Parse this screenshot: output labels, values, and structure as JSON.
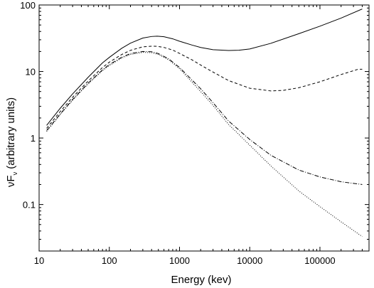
{
  "chart_data": {
    "type": "line",
    "xlabel": "Energy (kev)",
    "ylabel": {
      "prefix": "νF",
      "subscript": "ν",
      "suffix": " (arbitrary units)"
    },
    "xscale": "log",
    "yscale": "log",
    "xlim": [
      10,
      500000
    ],
    "ylim": [
      0.02,
      100
    ],
    "grid": false,
    "x_ticks": [
      {
        "value": 10,
        "label": "10"
      },
      {
        "value": 100,
        "label": "100"
      },
      {
        "value": 1000,
        "label": "1000"
      },
      {
        "value": 10000,
        "label": "10000"
      },
      {
        "value": 100000,
        "label": "100000"
      }
    ],
    "y_ticks": [
      {
        "value": 0.1,
        "label": "0.1"
      },
      {
        "value": 1,
        "label": "1"
      },
      {
        "value": 10,
        "label": "10"
      },
      {
        "value": 100,
        "label": "100"
      }
    ],
    "series": [
      {
        "style": "solid",
        "x": [
          12.8,
          20,
          30,
          50,
          80,
          100,
          150,
          200,
          300,
          400,
          480,
          600,
          800,
          1000,
          1500,
          2000,
          3000,
          5000,
          7000,
          10000,
          20000,
          50000,
          100000,
          200000,
          400000
        ],
        "y": [
          1.55,
          2.8,
          4.6,
          8.2,
          13.5,
          16.3,
          22.3,
          26.7,
          31.8,
          33.6,
          34.0,
          33.3,
          31.0,
          28.5,
          25.0,
          23.0,
          21.3,
          20.7,
          20.9,
          21.8,
          26.5,
          37.0,
          48.0,
          63.5,
          87.0
        ]
      },
      {
        "style": "dashed",
        "x": [
          12.8,
          20,
          30,
          50,
          80,
          100,
          150,
          200,
          300,
          400,
          480,
          600,
          800,
          1000,
          1500,
          2000,
          3000,
          5000,
          10000,
          20000,
          30000,
          50000,
          100000,
          200000,
          350000,
          400000
        ],
        "y": [
          1.4,
          2.5,
          4.1,
          7.2,
          11.5,
          13.8,
          18.0,
          20.8,
          23.5,
          24.0,
          23.9,
          23.0,
          21.0,
          18.7,
          15.0,
          12.5,
          9.8,
          7.3,
          5.6,
          5.1,
          5.2,
          5.7,
          7.0,
          9.0,
          10.8,
          10.8
        ]
      },
      {
        "style": "dash-dot",
        "x": [
          12.8,
          20,
          30,
          50,
          80,
          100,
          150,
          200,
          300,
          400,
          500,
          700,
          1000,
          2000,
          3000,
          5000,
          10000,
          20000,
          50000,
          100000,
          200000,
          400000
        ],
        "y": [
          1.3,
          2.3,
          3.8,
          6.7,
          10.6,
          12.7,
          16.4,
          18.6,
          20.0,
          19.8,
          18.6,
          15.5,
          11.5,
          5.5,
          3.4,
          1.8,
          0.95,
          0.55,
          0.33,
          0.26,
          0.22,
          0.2
        ]
      },
      {
        "style": "dotted",
        "x": [
          12.8,
          20,
          30,
          50,
          80,
          100,
          150,
          200,
          300,
          400,
          500,
          700,
          1000,
          2000,
          3000,
          5000,
          10000,
          20000,
          50000,
          100000,
          200000,
          400000
        ],
        "y": [
          1.25,
          2.25,
          3.7,
          6.5,
          10.3,
          12.3,
          15.9,
          18.0,
          19.4,
          19.2,
          18.0,
          15.0,
          11.0,
          5.0,
          3.1,
          1.6,
          0.78,
          0.38,
          0.16,
          0.093,
          0.055,
          0.033
        ]
      }
    ]
  }
}
